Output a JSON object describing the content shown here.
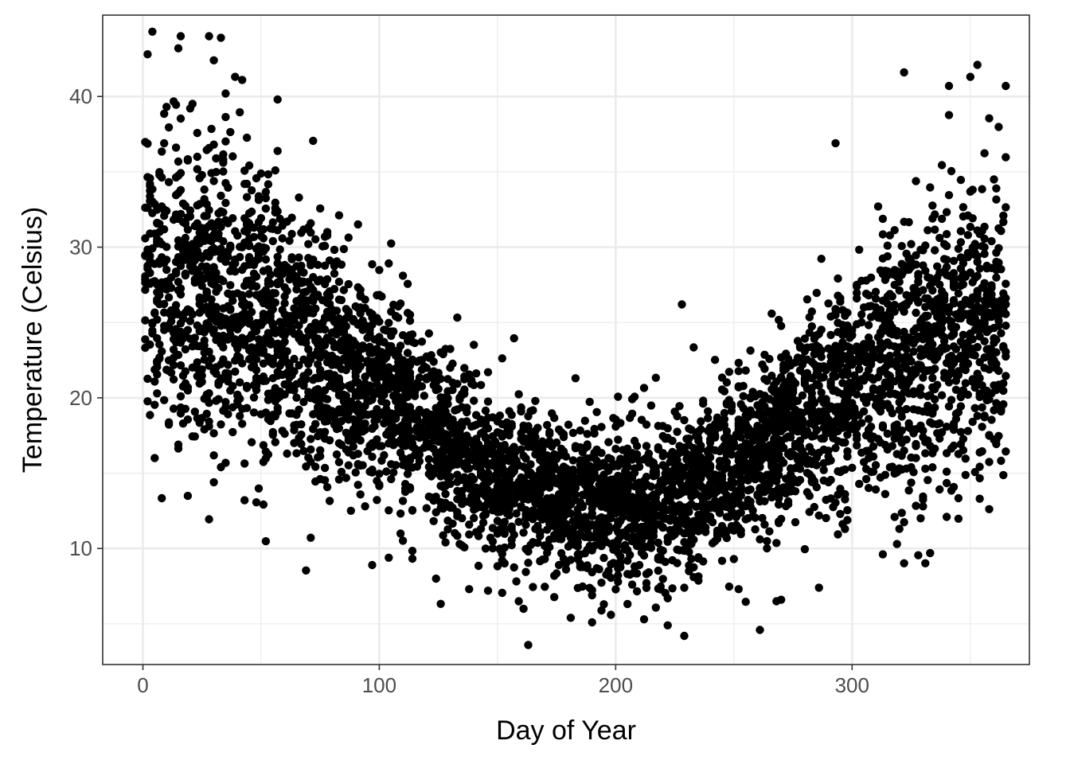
{
  "chart_data": {
    "type": "scatter",
    "xlabel": "Day of Year",
    "ylabel": "Temperature (Celsius)",
    "xlim": [
      -17,
      375
    ],
    "ylim": [
      2.3,
      45.4
    ],
    "x_ticks": [
      0,
      100,
      200,
      300
    ],
    "y_ticks": [
      10,
      20,
      30,
      40
    ],
    "x_minor_ticks": [
      50,
      150,
      250,
      350
    ],
    "y_minor_ticks": [
      5,
      15,
      25,
      35
    ],
    "grid": true,
    "theme": "black-and-white",
    "point_color": "#000000",
    "approx_point_count": 5000,
    "trend": {
      "description": "daily temperature follows a seasonal U-shape",
      "mean_points": [
        [
          0,
          28
        ],
        [
          50,
          25.5
        ],
        [
          100,
          20.5
        ],
        [
          150,
          15
        ],
        [
          190,
          12.5
        ],
        [
          230,
          13.5
        ],
        [
          280,
          18.5
        ],
        [
          320,
          22.5
        ],
        [
          365,
          25.5
        ]
      ],
      "spread_sd_points": [
        [
          0,
          5.2
        ],
        [
          50,
          5.0
        ],
        [
          100,
          3.4
        ],
        [
          150,
          2.5
        ],
        [
          190,
          2.5
        ],
        [
          230,
          2.6
        ],
        [
          280,
          3.2
        ],
        [
          320,
          4.2
        ],
        [
          365,
          5.0
        ]
      ]
    },
    "notable_points": [
      {
        "x": 4,
        "y": 44.3
      },
      {
        "x": 16,
        "y": 44.0
      },
      {
        "x": 28,
        "y": 44.0
      },
      {
        "x": 33,
        "y": 43.9
      },
      {
        "x": 2,
        "y": 42.8
      },
      {
        "x": 15,
        "y": 43.2
      },
      {
        "x": 30,
        "y": 42.4
      },
      {
        "x": 35,
        "y": 40.2
      },
      {
        "x": 39,
        "y": 41.3
      },
      {
        "x": 42,
        "y": 41.1
      },
      {
        "x": 57,
        "y": 39.8
      },
      {
        "x": 43,
        "y": 13.2
      },
      {
        "x": 5,
        "y": 16.0
      },
      {
        "x": 33,
        "y": 15.4
      },
      {
        "x": 97,
        "y": 8.9
      },
      {
        "x": 124,
        "y": 8.0
      },
      {
        "x": 138,
        "y": 7.3
      },
      {
        "x": 146,
        "y": 7.2
      },
      {
        "x": 159,
        "y": 6.5
      },
      {
        "x": 161,
        "y": 6.0
      },
      {
        "x": 163,
        "y": 3.6
      },
      {
        "x": 183,
        "y": 21.3
      },
      {
        "x": 181,
        "y": 5.4
      },
      {
        "x": 190,
        "y": 5.1
      },
      {
        "x": 198,
        "y": 5.6
      },
      {
        "x": 212,
        "y": 5.3
      },
      {
        "x": 222,
        "y": 4.9
      },
      {
        "x": 229,
        "y": 4.2
      },
      {
        "x": 228,
        "y": 26.2
      },
      {
        "x": 252,
        "y": 7.3
      },
      {
        "x": 268,
        "y": 6.5
      },
      {
        "x": 270,
        "y": 6.6
      },
      {
        "x": 286,
        "y": 7.4
      },
      {
        "x": 293,
        "y": 36.9
      },
      {
        "x": 322,
        "y": 41.6
      },
      {
        "x": 320,
        "y": 11.3
      },
      {
        "x": 333,
        "y": 9.7
      },
      {
        "x": 341,
        "y": 40.7
      },
      {
        "x": 340,
        "y": 12.1
      },
      {
        "x": 350,
        "y": 41.3
      },
      {
        "x": 353,
        "y": 42.1
      },
      {
        "x": 354,
        "y": 13.3
      },
      {
        "x": 365,
        "y": 40.7
      }
    ]
  }
}
